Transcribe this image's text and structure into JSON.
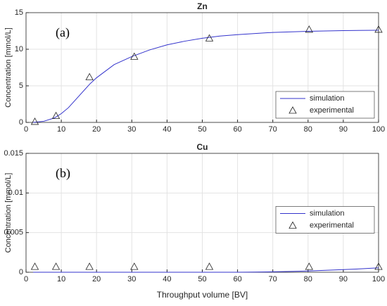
{
  "chart_data": [
    {
      "type": "line",
      "title": "Zn",
      "ylabel": "Concentration [mmol/L]",
      "annotation": "(a)",
      "xlim": [
        0,
        100
      ],
      "xticks": [
        0,
        10,
        20,
        30,
        40,
        50,
        60,
        70,
        80,
        90,
        100
      ],
      "ylim": [
        0,
        15
      ],
      "yticks": [
        0,
        5,
        10,
        15
      ],
      "grid": true,
      "legend": "lower right",
      "series": [
        {
          "name": "simulation",
          "color": "#3333cc",
          "style": "line",
          "x": [
            2,
            5,
            8,
            10,
            12,
            15,
            18,
            20,
            25,
            30,
            35,
            40,
            45,
            50,
            55,
            60,
            70,
            80,
            90,
            100
          ],
          "values": [
            0,
            0.15,
            0.6,
            1.2,
            2.0,
            3.6,
            5.2,
            6.1,
            7.9,
            9.0,
            9.9,
            10.6,
            11.1,
            11.5,
            11.8,
            12.0,
            12.3,
            12.45,
            12.55,
            12.6
          ]
        },
        {
          "name": "experimental",
          "color": "#222222",
          "style": "marker",
          "x": [
            2.5,
            8.5,
            18,
            30.7,
            52,
            80.3,
            100
          ],
          "values": [
            0.1,
            0.9,
            6.2,
            9.0,
            11.5,
            12.7,
            12.7
          ]
        }
      ]
    },
    {
      "type": "line",
      "title": "Cu",
      "ylabel": "Concentration [mmol/L]",
      "xlabel": "Throughput volume [BV]",
      "annotation": "(b)",
      "xlim": [
        0,
        100
      ],
      "xticks": [
        0,
        10,
        20,
        30,
        40,
        50,
        60,
        70,
        80,
        90,
        100
      ],
      "ylim": [
        0,
        0.015
      ],
      "yticks": [
        0,
        0.005,
        0.01,
        0.015
      ],
      "grid": true,
      "legend": "right",
      "series": [
        {
          "name": "simulation",
          "color": "#3333cc",
          "style": "line",
          "x": [
            2,
            10,
            20,
            30,
            40,
            50,
            60,
            65,
            70,
            75,
            80,
            85,
            90,
            95,
            100
          ],
          "values": [
            0,
            0,
            0,
            0,
            0,
            0,
            0,
            2e-05,
            5e-05,
            0.0001,
            0.00016,
            0.00024,
            0.00033,
            0.00043,
            0.00055
          ]
        },
        {
          "name": "experimental",
          "color": "#222222",
          "style": "marker",
          "x": [
            2.5,
            8.5,
            18,
            30.7,
            52,
            80.3,
            100
          ],
          "values": [
            0.0007,
            0.0007,
            0.0007,
            0.0007,
            0.0007,
            0.0007,
            0.0007
          ]
        }
      ]
    }
  ]
}
